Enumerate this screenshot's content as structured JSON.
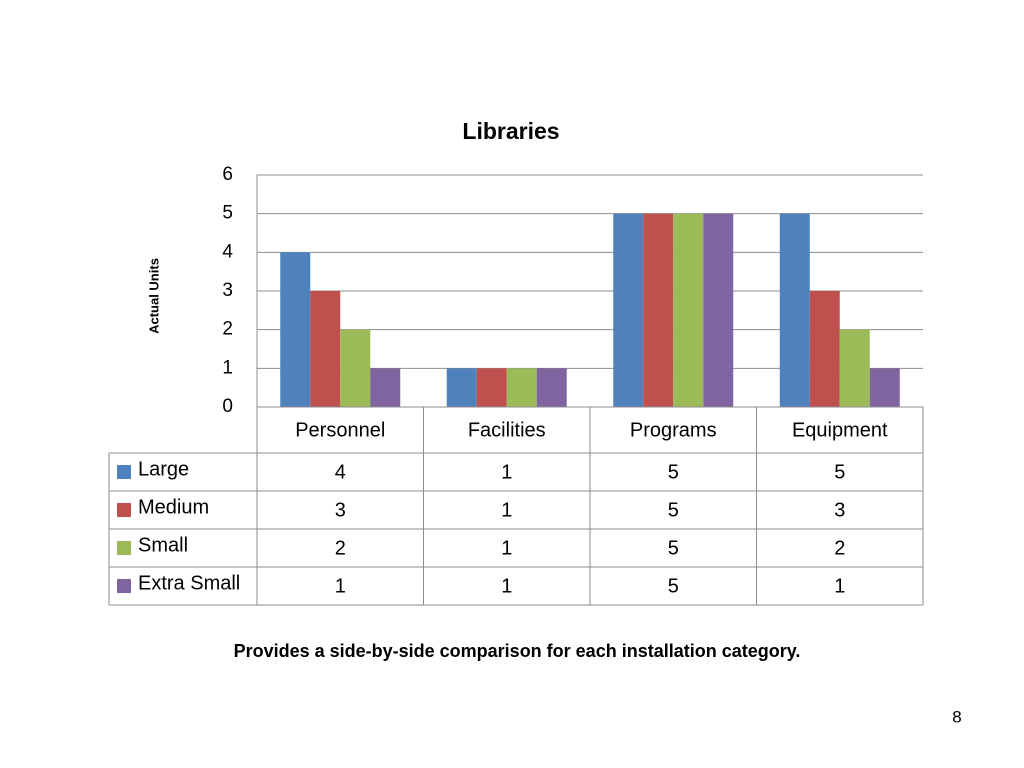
{
  "chart_data": {
    "type": "bar",
    "title": "Libraries",
    "y_label": "Actual Units",
    "categories": [
      "Personnel",
      "Facilities",
      "Programs",
      "Equipment"
    ],
    "series": [
      {
        "name": "Large",
        "color": "#4f81bd",
        "values": [
          4,
          1,
          5,
          5
        ]
      },
      {
        "name": "Medium",
        "color": "#c0504d",
        "values": [
          3,
          1,
          5,
          3
        ]
      },
      {
        "name": "Small",
        "color": "#9bbb59",
        "values": [
          2,
          1,
          5,
          2
        ]
      },
      {
        "name": "Extra Small",
        "color": "#8064a2",
        "values": [
          1,
          1,
          5,
          1
        ]
      }
    ],
    "ylim": [
      0,
      6
    ],
    "yticks": [
      0,
      1,
      2,
      3,
      4,
      5,
      6
    ],
    "grid": true,
    "data_table": true
  },
  "caption": "Provides a side-by-side comparison for each installation category.",
  "page_number": 8
}
